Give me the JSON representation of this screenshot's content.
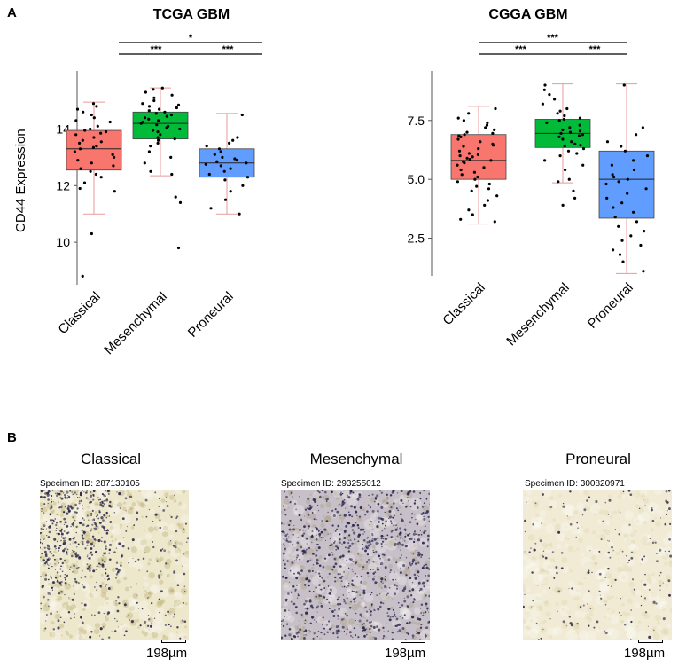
{
  "panel_a_label": "A",
  "panel_b_label": "B",
  "ylabel": "CD44 Expression",
  "chart_data": [
    {
      "type": "box",
      "title": "TCGA GBM",
      "ylabel": "CD44 Expression",
      "categories": [
        "Classical",
        "Mesenchymal",
        "Proneural"
      ],
      "colors": [
        "#f8766d",
        "#00ba38",
        "#619cff"
      ],
      "ylim": [
        8.5,
        15.8
      ],
      "yticks": [
        10,
        12,
        14
      ],
      "ytick_labels": [
        "10",
        "12",
        "14"
      ],
      "boxes": [
        {
          "min": 11.0,
          "q1": 12.55,
          "median": 13.3,
          "q3": 13.95,
          "max": 14.95
        },
        {
          "min": 12.35,
          "q1": 13.65,
          "median": 14.2,
          "q3": 14.6,
          "max": 15.45
        },
        {
          "min": 11.0,
          "q1": 12.3,
          "median": 12.8,
          "q3": 13.3,
          "max": 14.55
        }
      ],
      "points": [
        [
          14.9,
          14.8,
          14.7,
          14.6,
          14.5,
          14.4,
          14.3,
          14.25,
          14.1,
          14.0,
          13.95,
          13.9,
          13.85,
          13.8,
          13.7,
          13.6,
          13.55,
          13.5,
          13.4,
          13.35,
          13.3,
          13.2,
          13.1,
          13.0,
          12.9,
          12.8,
          12.7,
          12.6,
          12.5,
          12.4,
          12.3,
          12.1,
          11.9,
          11.8,
          10.3,
          8.8
        ],
        [
          15.45,
          15.4,
          15.3,
          15.2,
          15.1,
          15.0,
          14.9,
          14.85,
          14.8,
          14.75,
          14.7,
          14.65,
          14.6,
          14.55,
          14.5,
          14.45,
          14.4,
          14.35,
          14.3,
          14.25,
          14.2,
          14.15,
          14.1,
          14.05,
          14.0,
          13.95,
          13.9,
          13.8,
          13.7,
          13.65,
          13.6,
          13.5,
          13.4,
          13.2,
          13.0,
          12.8,
          12.5,
          12.4,
          11.6,
          11.4,
          9.8
        ],
        [
          14.5,
          13.7,
          13.6,
          13.5,
          13.4,
          13.3,
          13.2,
          13.1,
          13.0,
          12.95,
          12.9,
          12.85,
          12.8,
          12.75,
          12.7,
          12.6,
          12.5,
          12.4,
          12.3,
          12.2,
          12.0,
          11.8,
          11.5,
          11.2,
          11.0
        ]
      ],
      "significance": [
        {
          "from": "Classical",
          "to": "Proneural",
          "label": "*"
        },
        {
          "from": "Classical",
          "to": "Mesenchymal",
          "label": "***"
        },
        {
          "from": "Mesenchymal",
          "to": "Proneural",
          "label": "***"
        }
      ]
    },
    {
      "type": "box",
      "title": "CGGA GBM",
      "ylabel": "",
      "categories": [
        "Classical",
        "Mesenchymal",
        "Proneural"
      ],
      "colors": [
        "#f8766d",
        "#00ba38",
        "#619cff"
      ],
      "ylim": [
        0.9,
        9.3
      ],
      "yticks": [
        2.5,
        5.0,
        7.5
      ],
      "ytick_labels": [
        "2.5",
        "5.0",
        "7.5"
      ],
      "boxes": [
        {
          "min": 3.1,
          "q1": 5.0,
          "median": 5.8,
          "q3": 6.9,
          "max": 8.1
        },
        {
          "min": 4.85,
          "q1": 6.35,
          "median": 6.95,
          "q3": 7.55,
          "max": 9.05
        },
        {
          "min": 1.0,
          "q1": 3.35,
          "median": 5.0,
          "q3": 6.2,
          "max": 9.05
        }
      ],
      "points": [
        [
          8.0,
          7.8,
          7.6,
          7.5,
          7.4,
          7.3,
          7.2,
          7.1,
          7.0,
          6.95,
          6.9,
          6.85,
          6.8,
          6.7,
          6.6,
          6.5,
          6.45,
          6.4,
          6.3,
          6.2,
          6.1,
          6.05,
          6.0,
          5.95,
          5.9,
          5.85,
          5.8,
          5.75,
          5.7,
          5.6,
          5.5,
          5.4,
          5.3,
          5.2,
          5.1,
          5.0,
          4.9,
          4.8,
          4.7,
          4.6,
          4.5,
          4.3,
          4.1,
          3.9,
          3.7,
          3.5,
          3.3,
          3.2
        ],
        [
          9.0,
          8.8,
          8.6,
          8.4,
          8.2,
          8.0,
          7.9,
          7.8,
          7.7,
          7.6,
          7.55,
          7.5,
          7.4,
          7.3,
          7.2,
          7.1,
          7.05,
          7.0,
          6.95,
          6.9,
          6.85,
          6.8,
          6.7,
          6.6,
          6.5,
          6.45,
          6.4,
          6.3,
          6.2,
          6.1,
          6.0,
          5.8,
          5.6,
          5.4,
          5.0,
          4.9,
          4.5,
          4.2,
          3.9
        ],
        [
          9.0,
          7.2,
          6.9,
          6.6,
          6.4,
          6.2,
          6.0,
          5.8,
          5.6,
          5.4,
          5.2,
          5.1,
          5.0,
          4.9,
          4.8,
          4.6,
          4.4,
          4.2,
          4.0,
          3.8,
          3.6,
          3.4,
          3.2,
          3.0,
          2.8,
          2.6,
          2.4,
          2.2,
          2.0,
          1.8,
          1.5,
          1.1
        ]
      ],
      "significance": [
        {
          "from": "Classical",
          "to": "Proneural",
          "label": "***"
        },
        {
          "from": "Classical",
          "to": "Mesenchymal",
          "label": "***"
        },
        {
          "from": "Mesenchymal",
          "to": "Proneural",
          "label": "***"
        }
      ]
    }
  ],
  "specimens": [
    {
      "title": "Classical",
      "specimen_text": "Specimen ID: 287130105",
      "scale_text": "198µm",
      "base_color": "#ede7cc",
      "stain_color": "#b8a96a",
      "dot_color": "#2d2a4a",
      "density": "high"
    },
    {
      "title": "Mesenchymal",
      "specimen_text": "Specimen ID: 293255012",
      "scale_text": "198µm",
      "base_color": "#c8c0c8",
      "stain_color": "#a99b7a",
      "dot_color": "#2b2950",
      "density": "very-high"
    },
    {
      "title": "Proneural",
      "specimen_text": "Specimen ID: 300820971",
      "scale_text": "198µm",
      "base_color": "#f1ebd6",
      "stain_color": "#ddd3aa",
      "dot_color": "#3a3650",
      "density": "low"
    }
  ]
}
